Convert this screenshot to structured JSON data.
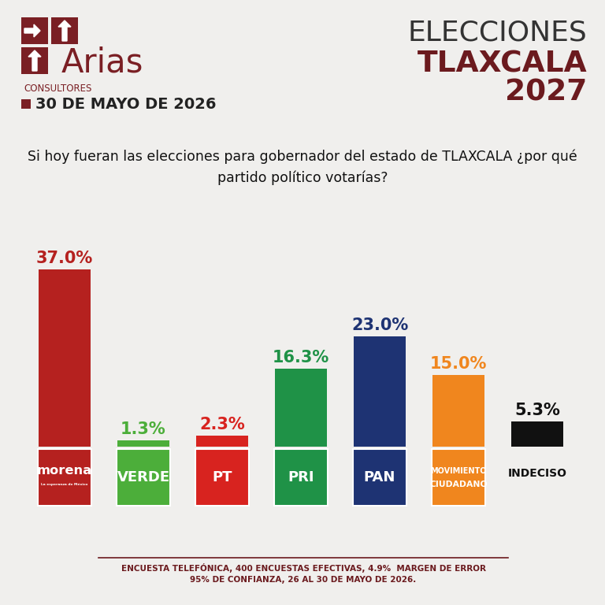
{
  "chart_data": {
    "type": "bar",
    "title": "ELECCIONES\nTLAXCALA\n2027",
    "subtitle": "Si hoy fueran las elecciones para gobernador del estado de TLAXCALA ¿por qué\npartido político votarías?",
    "annotations": [
      "Arias",
      "CONSULTORES",
      "30 DE MAYO DE 2026",
      "ENCUESTA TELEFÓNICA, 400 ENCUESTAS EFECTIVAS, 4.9%  MARGEN DE ERROR\n95% DE CONFIANZA, 26 AL 30 DE MAYO DE 2026."
    ],
    "categories": [
      "morena\nLa esperanza de México",
      "VERDE",
      "PT",
      "PRI",
      "PAN",
      "MOVIMIENTO\nCIUDADANO",
      "INDECISO"
    ],
    "values": [
      37.0,
      1.3,
      2.3,
      16.3,
      23.0,
      15.0,
      5.3
    ],
    "value_labels": [
      "37.0%",
      "1.3%",
      "2.3%",
      "16.3%",
      "23.0%",
      "15.0%",
      "5.3%"
    ],
    "colors": [
      "#b5211f",
      "#4cae3a",
      "#d8231f",
      "#1f9247",
      "#1e3373",
      "#f0861e",
      "#111111"
    ],
    "ylim": [
      0,
      37
    ],
    "data_labels": true,
    "tick_labels": false
  }
}
